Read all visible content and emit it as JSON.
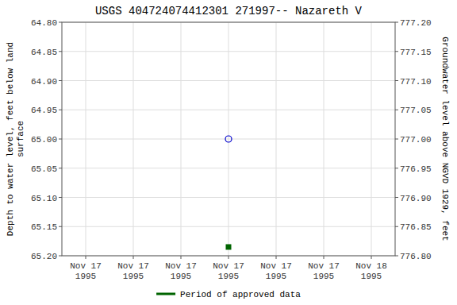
{
  "chart_data": {
    "type": "scatter",
    "title": "USGS 404724074412301 271997-- Nazareth V",
    "y_label": "Depth to water level, feet below land\nsurface",
    "y2_label": "Groundwater level above NGVD 1929, feet",
    "categories": [
      "Nov 17\n1995",
      "Nov 17\n1995",
      "Nov 17\n1995",
      "Nov 17\n1995",
      "Nov 17\n1995",
      "Nov 17\n1995",
      "Nov 18\n1995"
    ],
    "ylim": [
      65.2,
      64.8
    ],
    "yticks": [
      {
        "value": 64.8,
        "label": "64.80"
      },
      {
        "value": 64.85,
        "label": "64.85"
      },
      {
        "value": 64.9,
        "label": "64.90"
      },
      {
        "value": 64.95,
        "label": "64.95"
      },
      {
        "value": 65.0,
        "label": "65.00"
      },
      {
        "value": 65.05,
        "label": "65.05"
      },
      {
        "value": 65.1,
        "label": "65.10"
      },
      {
        "value": 65.15,
        "label": "65.15"
      },
      {
        "value": 65.2,
        "label": "65.20"
      }
    ],
    "y2lim": [
      776.8,
      777.2
    ],
    "y2ticks": [
      {
        "value": 777.2,
        "label": "777.20"
      },
      {
        "value": 777.15,
        "label": "777.15"
      },
      {
        "value": 777.1,
        "label": "777.10"
      },
      {
        "value": 777.05,
        "label": "777.05"
      },
      {
        "value": 777.0,
        "label": "777.00"
      },
      {
        "value": 776.95,
        "label": "776.95"
      },
      {
        "value": 776.9,
        "label": "776.90"
      },
      {
        "value": 776.85,
        "label": "776.85"
      },
      {
        "value": 776.8,
        "label": "776.80"
      }
    ],
    "grid": true,
    "legend": "bottom",
    "series": [
      {
        "color": "#0000cc",
        "marker": "circle",
        "values": [
          null,
          null,
          null,
          65.0,
          null,
          null,
          null
        ]
      },
      {
        "name": "Period of approved data",
        "color": "#006400",
        "marker": "square",
        "values": [
          null,
          null,
          null,
          65.185,
          null,
          null,
          null
        ]
      }
    ]
  }
}
